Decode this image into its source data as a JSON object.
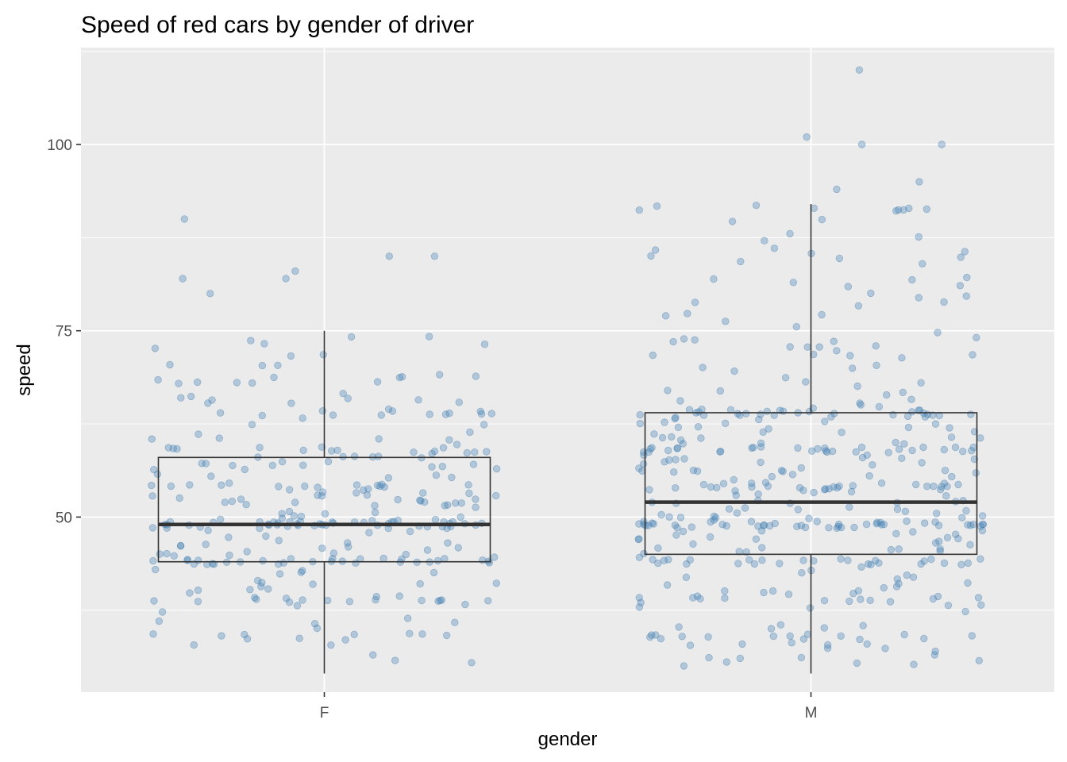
{
  "chart_data": {
    "type": "boxplot",
    "title": "Speed of red cars by gender of driver",
    "xlabel": "gender",
    "ylabel": "speed",
    "categories": [
      "F",
      "M"
    ],
    "ylim": [
      26.5,
      113
    ],
    "y_ticks": [
      50,
      75,
      100
    ],
    "grid": true,
    "point_color": "#4682B4",
    "panel_background": "#EBEBEB",
    "boxes": [
      {
        "category": "F",
        "whisker_low": 29,
        "q1": 44,
        "median": 49,
        "q3": 58,
        "whisker_high": 75
      },
      {
        "category": "M",
        "whisker_low": 29,
        "q1": 45,
        "median": 52,
        "q3": 64,
        "whisker_high": 92
      }
    ],
    "outliers": [
      {
        "category": "F",
        "values": [
          80,
          82,
          82,
          83,
          85,
          85,
          90
        ]
      },
      {
        "category": "M",
        "values": [
          94,
          95,
          100,
          100,
          101,
          110
        ]
      }
    ],
    "jitter_points": [
      {
        "category": "F",
        "n": 300
      },
      {
        "category": "M",
        "n": 420
      }
    ]
  }
}
